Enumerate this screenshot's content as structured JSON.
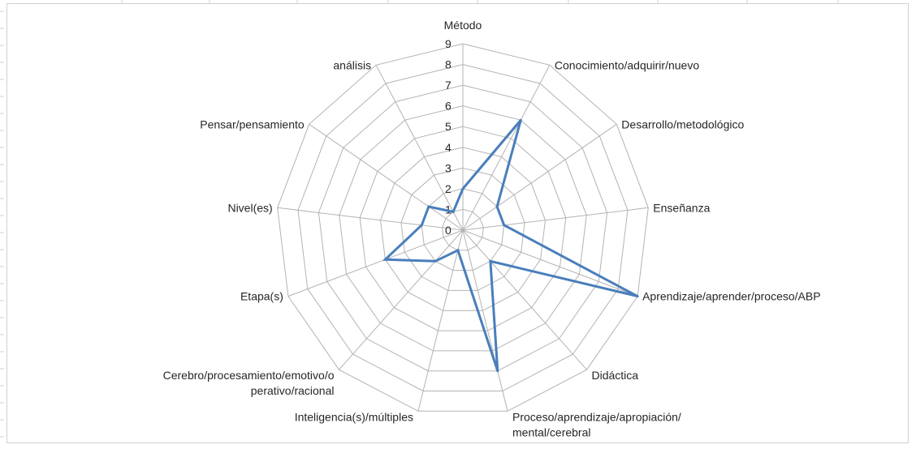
{
  "chart_data": {
    "type": "radar",
    "title": "",
    "categories": [
      [
        "Método"
      ],
      [
        "Conocimiento/adquirir/nuevo"
      ],
      [
        "Desarrollo/metodológico"
      ],
      [
        "Enseñanza"
      ],
      [
        "Aprendizaje/aprender/proceso/ABP"
      ],
      [
        "Didáctica"
      ],
      [
        "Proceso/aprendizaje/apropiación/",
        "mental/cerebral"
      ],
      [
        "Inteligencia(s)/múltiples"
      ],
      [
        "Cerebro/procesamiento/emotivo/o",
        "perativo/racional"
      ],
      [
        "Etapa(s)"
      ],
      [
        "Nivel(es)"
      ],
      [
        "Pensar/pensamiento"
      ],
      [
        "análisis"
      ]
    ],
    "series": [
      {
        "values": [
          2,
          6,
          2,
          2,
          9,
          2,
          7,
          1,
          2,
          4,
          2,
          2,
          1
        ]
      }
    ],
    "rlim": [
      0,
      9
    ],
    "ticks": [
      "0",
      "1",
      "2",
      "3",
      "4",
      "5",
      "6",
      "7",
      "8",
      "9"
    ],
    "grid": true,
    "legend": "none"
  },
  "colors": {
    "line": "#4a7ebb",
    "grid": "#b3b3b3",
    "frame": "#d0d0d0",
    "text": "#262626"
  }
}
